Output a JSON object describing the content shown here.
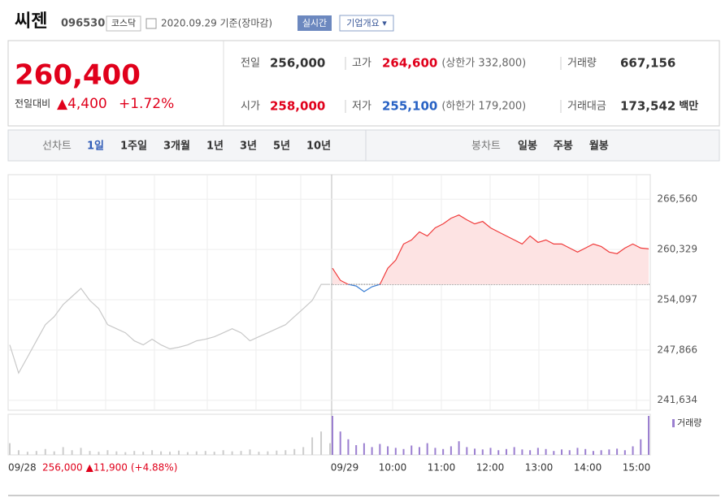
{
  "header": {
    "name": "씨젠",
    "code": "096530",
    "market": "코스닥",
    "date": "2020.09.29 기준(장마감)",
    "realtime": "실시간",
    "overview": "기업개요 ▾"
  },
  "quote": {
    "price": "260,400",
    "change_label": "전일대비",
    "change": "▲4,400",
    "pct": "+1.72%"
  },
  "stats": [
    {
      "label": "전일",
      "value": "256,000"
    },
    {
      "label": "고가",
      "value": "264,600",
      "extra": "(상한가 332,800)"
    },
    {
      "label": "거래량",
      "value": "667,156"
    },
    {
      "label": "시가",
      "value": "258,000"
    },
    {
      "label": "저가",
      "value": "255,100",
      "extra": "(하한가 179,200)"
    },
    {
      "label": "거래대금",
      "value": "173,542",
      "unit": "백만"
    }
  ],
  "line_tabs": {
    "label": "선차트",
    "items": [
      "1일",
      "1주일",
      "3개월",
      "1년",
      "3년",
      "5년",
      "10년"
    ]
  },
  "candle_tabs": {
    "label": "봉차트",
    "items": [
      "일봉",
      "주봉",
      "월봉"
    ]
  },
  "chart_data": {
    "type": "line",
    "ylim": [
      240400,
      269600
    ],
    "yticks": [
      {
        "value": 241634,
        "label": "241,634"
      },
      {
        "value": 247866,
        "label": "247,866"
      },
      {
        "value": 254097,
        "label": "254,097"
      },
      {
        "value": 260329,
        "label": "260,329"
      },
      {
        "value": 266560,
        "label": "266,560"
      }
    ],
    "x_labels": [
      "09/28",
      "09/29",
      "10:00",
      "11:00",
      "12:00",
      "13:00",
      "14:00",
      "15:00"
    ],
    "baseline": 256000,
    "series": [
      {
        "color": "#c8c8c8",
        "values": [
          248500,
          245000,
          247000,
          249000,
          251000,
          252000,
          253500,
          254500,
          255500,
          254000,
          253000,
          251000,
          250500,
          250000,
          249000,
          248500,
          249200,
          248500,
          248000,
          248200,
          248500,
          249000,
          249200,
          249500,
          250000,
          250500,
          250000,
          249000,
          249500,
          250000,
          250500,
          251000,
          252000,
          253000,
          254000,
          256000,
          256000
        ],
        "volume": [
          30,
          12,
          8,
          10,
          15,
          9,
          20,
          12,
          18,
          10,
          8,
          12,
          9,
          7,
          10,
          8,
          12,
          9,
          8,
          11,
          7,
          9,
          10,
          8,
          12,
          9,
          10,
          14,
          8,
          9,
          11,
          12,
          15,
          20,
          45,
          60,
          30
        ]
      },
      {
        "color": "#f03a3a",
        "down_color": "#3b7fd4",
        "values": [
          258000,
          256500,
          256000,
          255800,
          255100,
          255700,
          256000,
          258000,
          259000,
          261000,
          261500,
          262500,
          262000,
          263000,
          263500,
          264200,
          264600,
          264000,
          263500,
          263800,
          263000,
          262500,
          262000,
          261500,
          261000,
          262000,
          261200,
          261500,
          261000,
          261000,
          260500,
          260000,
          260500,
          261000,
          260700,
          260000,
          259800,
          260500,
          261000,
          260500,
          260400
        ],
        "volume": [
          100,
          60,
          40,
          25,
          30,
          20,
          28,
          22,
          18,
          15,
          24,
          20,
          30,
          18,
          15,
          22,
          35,
          20,
          16,
          14,
          18,
          12,
          15,
          20,
          14,
          12,
          18,
          15,
          10,
          14,
          12,
          18,
          15,
          10,
          12,
          14,
          16,
          12,
          22,
          40,
          100
        ]
      }
    ],
    "volume_ylim": [
      0,
      100
    ],
    "volume_color": "#9b7fd0",
    "volume_label": "거래량",
    "info": {
      "date": "09/28",
      "close": "256,000",
      "change": "▲11,900",
      "pct": "(+4.88%)"
    }
  }
}
